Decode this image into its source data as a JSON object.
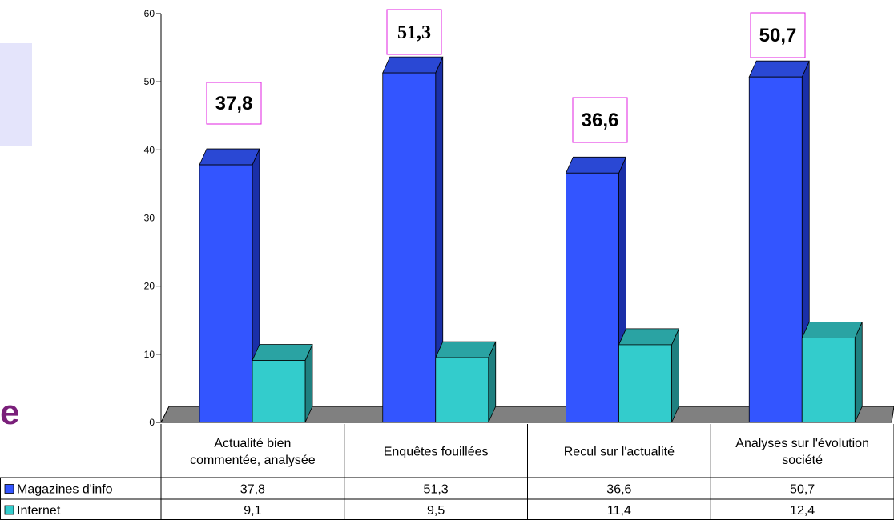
{
  "side": {
    "glyph": "e"
  },
  "chart_data": {
    "type": "bar",
    "categories": [
      [
        "Actualité bien",
        "commentée, analysée"
      ],
      [
        "Enquêtes fouillées"
      ],
      [
        "Recul sur l'actualité"
      ],
      [
        "Analyses sur l'évolution",
        "société"
      ]
    ],
    "series": [
      {
        "name": "Magazines d'info",
        "values": [
          37.8,
          51.3,
          36.6,
          50.7
        ],
        "color": "#3355ff",
        "top_color": "#2a48d4",
        "side_color": "#1a2fa8"
      },
      {
        "name": "Internet",
        "values": [
          9.1,
          9.5,
          11.4,
          12.4
        ],
        "color": "#33cccc",
        "top_color": "#2aa3a3",
        "side_color": "#1f8080"
      }
    ],
    "table_values": [
      [
        "37,8",
        "51,3",
        "36,6",
        "50,7"
      ],
      [
        "9,1",
        "9,5",
        "11,4",
        "12,4"
      ]
    ],
    "data_labels": [
      "37,8",
      "51,3",
      "36,6",
      "50,7"
    ],
    "label_border_color": "#e020e0",
    "ylim": [
      0,
      60
    ],
    "yticks": [
      0,
      10,
      20,
      30,
      40,
      50,
      60
    ],
    "floor_color": "#808080",
    "grid": false
  }
}
